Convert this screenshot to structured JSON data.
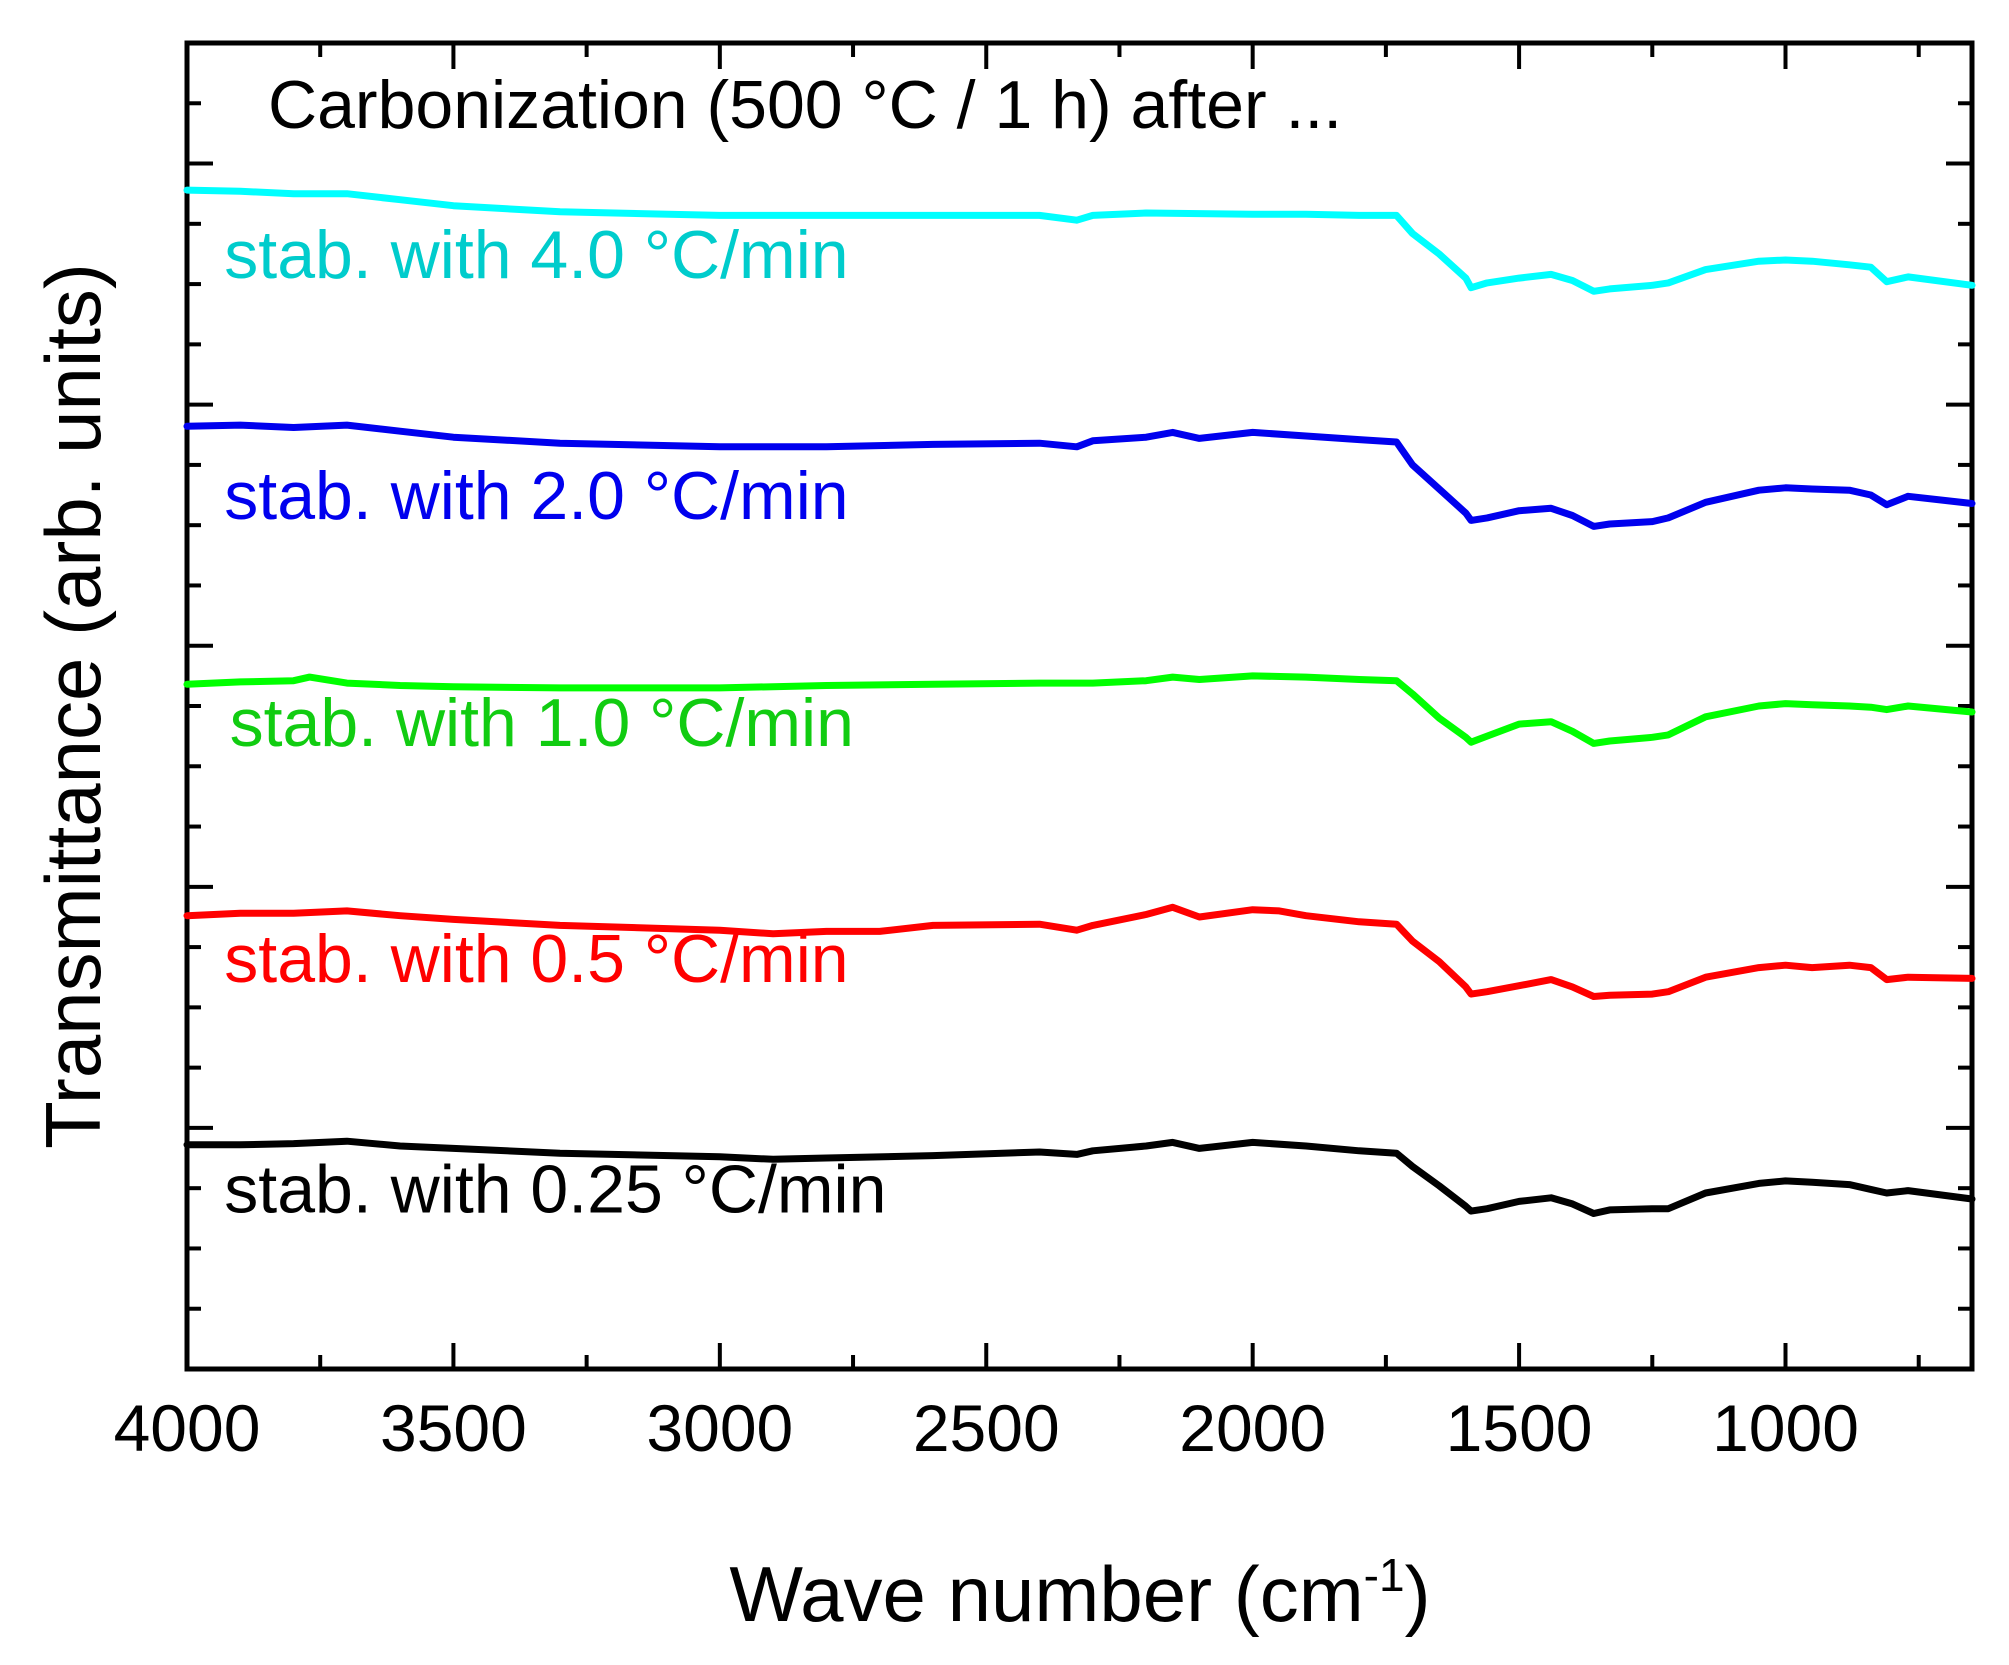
{
  "chart_data": {
    "type": "line",
    "title": "",
    "annotation": "Carbonization (500 °C / 1 h) after ...",
    "xlabel": {
      "main": "Wave number (cm",
      "sup": "-1",
      "end": ")"
    },
    "ylabel": "Transmittance (arb. units)",
    "xlim": [
      4000,
      650
    ],
    "x_reversed": true,
    "ylim": [
      0,
      11
    ],
    "y_ticks_labeled": false,
    "x_ticks": [
      4000,
      3500,
      3000,
      2500,
      2000,
      1500,
      1000
    ],
    "x_tick_labels": [
      "4000",
      "3500",
      "3000",
      "2500",
      "2000",
      "1500",
      "1000"
    ],
    "series": [
      {
        "name": "stab. with 4.0 °C/min",
        "color": "#00ffff",
        "label_color": "#00cccc",
        "x": [
          4000,
          3900,
          3800,
          3700,
          3600,
          3500,
          3300,
          3000,
          2800,
          2600,
          2400,
          2330,
          2300,
          2200,
          2000,
          1900,
          1800,
          1730,
          1700,
          1650,
          1600,
          1590,
          1560,
          1500,
          1440,
          1400,
          1360,
          1330,
          1250,
          1220,
          1150,
          1050,
          1000,
          950,
          880,
          840,
          810,
          770,
          650
        ],
        "values": [
          9.78,
          9.77,
          9.75,
          9.75,
          9.7,
          9.65,
          9.6,
          9.57,
          9.57,
          9.57,
          9.57,
          9.53,
          9.57,
          9.59,
          9.58,
          9.58,
          9.57,
          9.57,
          9.42,
          9.25,
          9.05,
          8.97,
          9.01,
          9.05,
          9.08,
          9.03,
          8.94,
          8.96,
          8.99,
          9.01,
          9.12,
          9.19,
          9.2,
          9.19,
          9.16,
          9.14,
          9.02,
          9.06,
          8.99
        ]
      },
      {
        "name": "stab. with 2.0 °C/min",
        "color": "#0000ee",
        "label_color": "#0000ee",
        "x": [
          4000,
          3900,
          3800,
          3700,
          3600,
          3500,
          3300,
          3000,
          2800,
          2600,
          2400,
          2330,
          2300,
          2200,
          2150,
          2100,
          2000,
          1900,
          1800,
          1730,
          1700,
          1650,
          1600,
          1590,
          1560,
          1500,
          1440,
          1400,
          1360,
          1330,
          1250,
          1220,
          1150,
          1050,
          1000,
          950,
          880,
          840,
          810,
          770,
          650
        ],
        "values": [
          7.82,
          7.83,
          7.81,
          7.83,
          7.78,
          7.73,
          7.68,
          7.65,
          7.65,
          7.67,
          7.68,
          7.65,
          7.7,
          7.73,
          7.77,
          7.72,
          7.77,
          7.74,
          7.71,
          7.69,
          7.5,
          7.3,
          7.1,
          7.04,
          7.06,
          7.12,
          7.14,
          7.08,
          6.99,
          7.01,
          7.03,
          7.06,
          7.19,
          7.29,
          7.31,
          7.3,
          7.29,
          7.25,
          7.17,
          7.24,
          7.18
        ]
      },
      {
        "name": "stab. with 1.0 °C/min",
        "color": "#00ff00",
        "label_color": "#11cc11",
        "x": [
          4000,
          3900,
          3800,
          3770,
          3700,
          3600,
          3500,
          3300,
          3000,
          2800,
          2600,
          2400,
          2300,
          2200,
          2150,
          2100,
          2000,
          1900,
          1800,
          1730,
          1700,
          1650,
          1600,
          1590,
          1560,
          1500,
          1440,
          1400,
          1360,
          1330,
          1250,
          1220,
          1150,
          1050,
          1000,
          950,
          880,
          840,
          810,
          770,
          650
        ],
        "values": [
          5.68,
          5.7,
          5.71,
          5.74,
          5.69,
          5.67,
          5.66,
          5.65,
          5.65,
          5.67,
          5.68,
          5.69,
          5.69,
          5.71,
          5.74,
          5.72,
          5.75,
          5.74,
          5.72,
          5.71,
          5.6,
          5.4,
          5.24,
          5.2,
          5.25,
          5.35,
          5.37,
          5.29,
          5.19,
          5.21,
          5.24,
          5.26,
          5.41,
          5.5,
          5.52,
          5.51,
          5.5,
          5.49,
          5.47,
          5.5,
          5.45
        ]
      },
      {
        "name": "stab. with 0.5 °C/min",
        "color": "#ff0000",
        "label_color": "#ff0000",
        "x": [
          4000,
          3900,
          3800,
          3700,
          3600,
          3500,
          3300,
          3000,
          2900,
          2800,
          2700,
          2600,
          2400,
          2330,
          2300,
          2200,
          2150,
          2100,
          2000,
          1950,
          1900,
          1800,
          1730,
          1700,
          1650,
          1600,
          1590,
          1560,
          1500,
          1440,
          1400,
          1360,
          1330,
          1250,
          1220,
          1150,
          1050,
          1000,
          950,
          880,
          840,
          810,
          770,
          650
        ],
        "values": [
          3.76,
          3.78,
          3.78,
          3.8,
          3.76,
          3.73,
          3.68,
          3.64,
          3.61,
          3.63,
          3.63,
          3.68,
          3.69,
          3.64,
          3.68,
          3.77,
          3.83,
          3.75,
          3.81,
          3.8,
          3.76,
          3.71,
          3.69,
          3.55,
          3.38,
          3.17,
          3.11,
          3.13,
          3.18,
          3.23,
          3.17,
          3.09,
          3.1,
          3.11,
          3.13,
          3.25,
          3.33,
          3.35,
          3.33,
          3.35,
          3.33,
          3.23,
          3.25,
          3.24
        ]
      },
      {
        "name": "stab. with 0.25 °C/min",
        "color": "#000000",
        "label_color": "#000000",
        "x": [
          4000,
          3900,
          3800,
          3700,
          3600,
          3500,
          3300,
          3000,
          2900,
          2800,
          2600,
          2400,
          2330,
          2300,
          2200,
          2150,
          2100,
          2000,
          1900,
          1800,
          1730,
          1700,
          1650,
          1600,
          1590,
          1560,
          1500,
          1440,
          1400,
          1360,
          1330,
          1250,
          1220,
          1150,
          1050,
          1000,
          950,
          880,
          840,
          810,
          770,
          650
        ],
        "values": [
          1.86,
          1.86,
          1.87,
          1.89,
          1.85,
          1.83,
          1.79,
          1.76,
          1.74,
          1.75,
          1.77,
          1.8,
          1.78,
          1.81,
          1.85,
          1.88,
          1.83,
          1.88,
          1.85,
          1.81,
          1.79,
          1.68,
          1.52,
          1.35,
          1.31,
          1.33,
          1.39,
          1.42,
          1.37,
          1.29,
          1.32,
          1.33,
          1.33,
          1.46,
          1.54,
          1.56,
          1.55,
          1.53,
          1.49,
          1.46,
          1.48,
          1.41
        ]
      }
    ],
    "series_labels": [
      {
        "text": "stab. with 4.0 °C/min",
        "x": 3930,
        "y": 9.05,
        "color": "#00cccc"
      },
      {
        "text": "stab. with 2.0 °C/min",
        "x": 3930,
        "y": 7.05,
        "color": "#0000ee"
      },
      {
        "text": "stab. with 1.0 °C/min",
        "x": 3920,
        "y": 5.17,
        "color": "#11cc11"
      },
      {
        "text": "stab. with 0.5 °C/min",
        "x": 3930,
        "y": 3.21,
        "color": "#ff0000"
      },
      {
        "text": "stab. with 0.25 °C/min",
        "x": 3930,
        "y": 1.3,
        "color": "#000000"
      }
    ]
  }
}
